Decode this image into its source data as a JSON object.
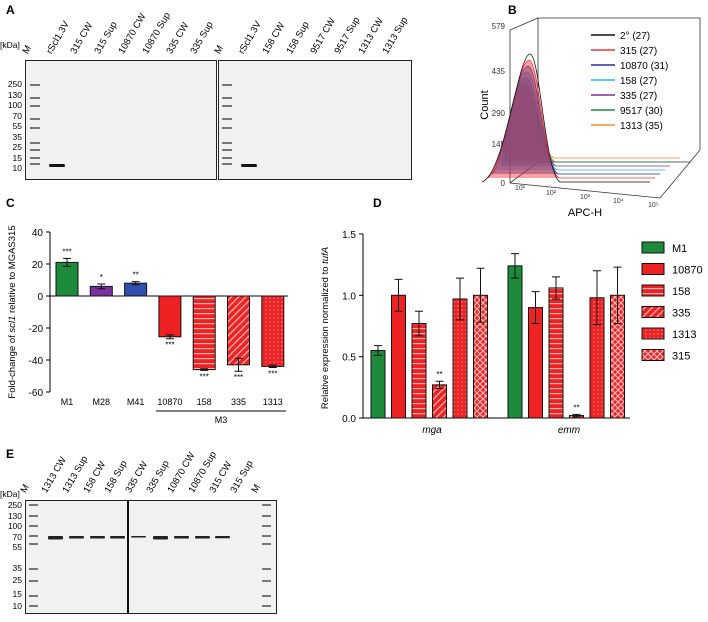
{
  "panels": {
    "a": "A",
    "b": "B",
    "c": "C",
    "d": "D",
    "e": "E"
  },
  "gel_a": {
    "kda_label": "[kDa]",
    "markers": [
      "250",
      "130",
      "100",
      "70",
      "55",
      "35",
      "25",
      "15",
      "10"
    ],
    "lanes_left": [
      "M",
      "rScl1.3V",
      "315 CW",
      "315 Sup",
      "10870 CW",
      "10870 Sup",
      "335 CW",
      "335 Sup"
    ],
    "lanes_right": [
      "rScl1.3V",
      "158 CW",
      "158 Sup",
      "9517 CW",
      "9517 Sup",
      "1313 CW",
      "1313 Sup"
    ]
  },
  "gel_e": {
    "kda_label": "[kDa]",
    "markers": [
      "250",
      "130",
      "100",
      "70",
      "55",
      "35",
      "25",
      "15",
      "10"
    ],
    "lanes": [
      "M",
      "1313 CW",
      "1313 Sup",
      "158 CW",
      "158 Sup",
      "335 CW",
      "335 Sup",
      "10870 CW",
      "10870 Sup",
      "315 CW",
      "315 Sup",
      "M"
    ]
  },
  "chart_data": [
    {
      "panel": "B",
      "type": "histogram",
      "ylabel": "Count",
      "xlabel": "APC-H",
      "yticks": [
        "0",
        "145",
        "290",
        "435",
        "579"
      ],
      "xticks": [
        "10¹",
        "10²",
        "10³",
        "10⁴",
        "10⁵"
      ],
      "legend": [
        {
          "label": "2° (27)",
          "color": "#111111"
        },
        {
          "label": "315 (27)",
          "color": "#ee3333"
        },
        {
          "label": "10870 (31)",
          "color": "#2a2aa8"
        },
        {
          "label": "158 (27)",
          "color": "#22bbdd"
        },
        {
          "label": "335 (27)",
          "color": "#7b2fa0"
        },
        {
          "label": "9517 (30)",
          "color": "#1e8a3c"
        },
        {
          "label": "1313 (35)",
          "color": "#f28a3a"
        }
      ]
    },
    {
      "panel": "C",
      "type": "bar",
      "ylabel_pre": "Fold-change of ",
      "ylabel_it": "scl1",
      "ylabel_post": " relative to MGAS315",
      "ylim": [
        -60,
        40
      ],
      "yticks": [
        "40",
        "20",
        "0",
        "-20",
        "-40",
        "-60"
      ],
      "categories": [
        "M1",
        "M28",
        "M41",
        "10870",
        "158",
        "335",
        "1313"
      ],
      "values": [
        21,
        6,
        8,
        -25.5,
        -46,
        -43,
        -44
      ],
      "errors": [
        2.5,
        1.5,
        1,
        1.2,
        0.5,
        4,
        0.7
      ],
      "significance": [
        "***",
        "*",
        "**",
        "***",
        "***",
        "***",
        "***"
      ],
      "group_label": "M3",
      "colors": [
        "#1e8a3c",
        "#7b2fa0",
        "#2e4fb0",
        "#ee2222",
        "#ee2222",
        "#ee2222",
        "#ee2222"
      ],
      "patterns": [
        "solid",
        "solid",
        "solid",
        "solid",
        "hstripe",
        "diag",
        "dots"
      ]
    },
    {
      "panel": "D",
      "type": "bar",
      "ylabel_pre": "Relative expression normalized to ",
      "ylabel_it": "tufA",
      "ylim": [
        0,
        1.5
      ],
      "yticks": [
        "0.0",
        "0.5",
        "1.0",
        "1.5"
      ],
      "categories": [
        "mga",
        "emm"
      ],
      "series": [
        {
          "name": "M1",
          "values": [
            0.55,
            1.24
          ],
          "errors": [
            0.04,
            0.1
          ],
          "color": "#1e8a3c",
          "pattern": "solid"
        },
        {
          "name": "10870",
          "values": [
            1.0,
            0.9
          ],
          "errors": [
            0.13,
            0.13
          ],
          "color": "#ee2222",
          "pattern": "solid"
        },
        {
          "name": "158",
          "values": [
            0.77,
            1.06
          ],
          "errors": [
            0.1,
            0.09
          ],
          "color": "#ee2222",
          "pattern": "hstripe"
        },
        {
          "name": "335",
          "values": [
            0.27,
            0.02
          ],
          "errors": [
            0.03,
            0.01
          ],
          "color": "#ee2222",
          "pattern": "diag",
          "significance": "**"
        },
        {
          "name": "1313",
          "values": [
            0.97,
            0.98
          ],
          "errors": [
            0.17,
            0.22
          ],
          "color": "#ee2222",
          "pattern": "dots"
        },
        {
          "name": "315",
          "values": [
            1.0,
            1.0
          ],
          "errors": [
            0.22,
            0.23
          ],
          "color": "#ee2222",
          "pattern": "cross"
        }
      ]
    }
  ]
}
